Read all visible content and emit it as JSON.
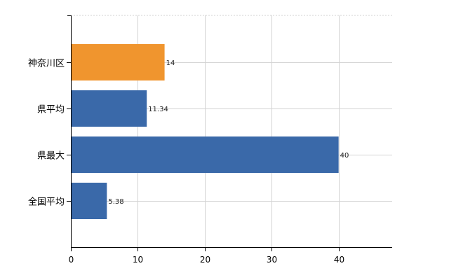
{
  "chart_data": {
    "type": "bar",
    "orientation": "horizontal",
    "title": "",
    "xlabel": "",
    "ylabel": "",
    "categories": [
      "神奈川区",
      "県平均",
      "県最大",
      "全国平均"
    ],
    "values": [
      14,
      11.34,
      40,
      5.38
    ],
    "data_labels": [
      "14",
      "11.34",
      "40",
      "5.38"
    ],
    "bar_colors": [
      "#f0952e",
      "#3a69a9",
      "#3a69a9",
      "#3a69a9"
    ],
    "xlim": [
      0,
      48
    ],
    "x_ticks": [
      0,
      10,
      20,
      30,
      40
    ],
    "x_tick_labels": [
      "0",
      "10",
      "20",
      "30",
      "40"
    ],
    "grid": true,
    "legend": "none"
  }
}
